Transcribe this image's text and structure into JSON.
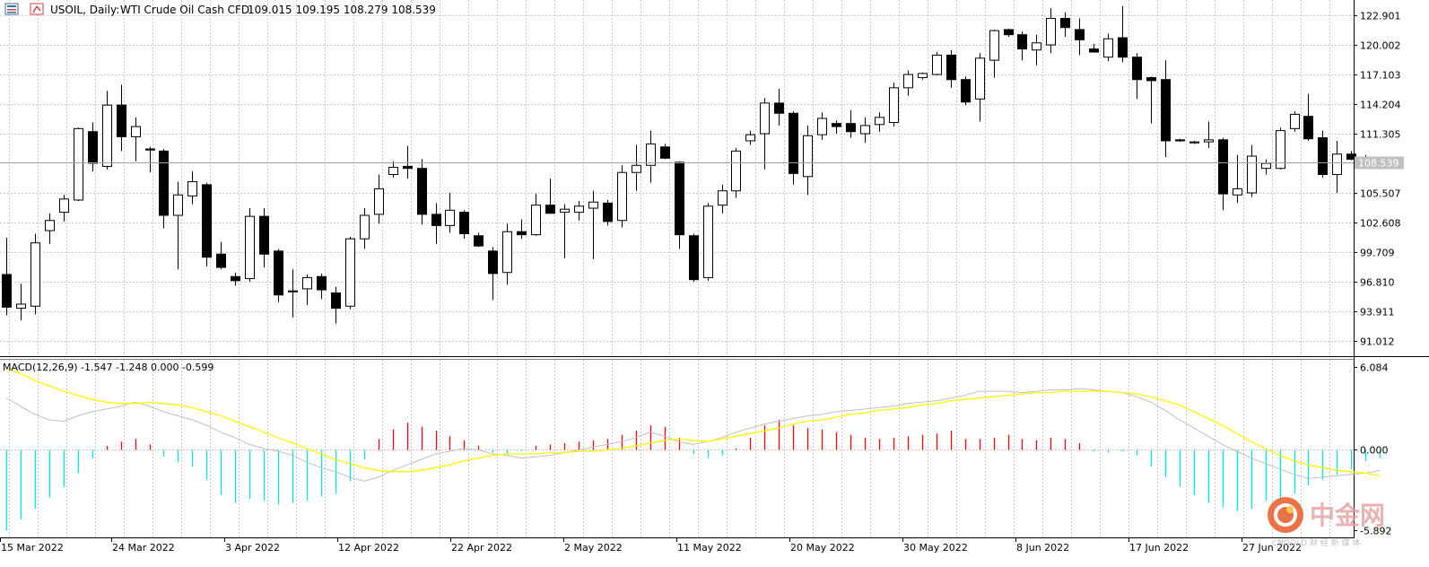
{
  "header": {
    "symbol": "USOIL, Daily:",
    "description": "WTI Crude Oil Cash CFD",
    "ohlc": "109.015 109.195 108.279 108.539"
  },
  "price_axis": {
    "ticks": [
      "122.901",
      "120.002",
      "117.103",
      "114.204",
      "111.305",
      "108.539",
      "105.507",
      "102.608",
      "99.709",
      "96.810",
      "93.911",
      "91.012"
    ],
    "current_label": "108.539"
  },
  "macd_panel": {
    "label": "MACD(12,26,9) -1.547 -1.248 0.000 -0.599",
    "ticks": [
      "6.084",
      "0.000",
      "-5.892"
    ]
  },
  "date_axis": {
    "labels": [
      "15 Mar 2022",
      "24 Mar 2022",
      "3 Apr 2022",
      "12 Apr 2022",
      "22 Apr 2022",
      "2 May 2022",
      "11 May 2022",
      "20 May 2022",
      "30 May 2022",
      "8 Jun 2022",
      "17 Jun 2022",
      "27 Jun 2022"
    ]
  },
  "watermark": {
    "brand": "中金网",
    "sub": "CNGOLD 财 经 新 媒 体"
  },
  "colors": {
    "bull_fill": "#ffffff",
    "bear_fill": "#000000",
    "grid": "#c8c8c8",
    "hist_positive": "#ff0000",
    "hist_negative": "#00e5ee",
    "signal_line": "#ffff00",
    "macd_line": "#c0c0c0"
  },
  "chart_data": [
    {
      "type": "candlestick",
      "title": "USOIL, Daily: WTI Crude Oil Cash CFD",
      "ylim": [
        89.5,
        124.4
      ],
      "x_labels": [
        "15 Mar 2022",
        "24 Mar 2022",
        "3 Apr 2022",
        "12 Apr 2022",
        "22 Apr 2022",
        "2 May 2022",
        "11 May 2022",
        "20 May 2022",
        "30 May 2022",
        "8 Jun 2022",
        "17 Jun 2022",
        "27 Jun 2022"
      ],
      "candles": [
        {
          "o": 97.5,
          "h": 101.1,
          "l": 93.5,
          "c": 94.3
        },
        {
          "o": 94.2,
          "h": 96.6,
          "l": 93.0,
          "c": 94.6
        },
        {
          "o": 94.4,
          "h": 101.5,
          "l": 93.6,
          "c": 100.6
        },
        {
          "o": 101.8,
          "h": 103.5,
          "l": 100.5,
          "c": 102.8
        },
        {
          "o": 103.6,
          "h": 105.3,
          "l": 102.7,
          "c": 104.9
        },
        {
          "o": 104.8,
          "h": 111.9,
          "l": 104.7,
          "c": 111.8
        },
        {
          "o": 111.5,
          "h": 112.4,
          "l": 107.6,
          "c": 108.4
        },
        {
          "o": 108.1,
          "h": 115.5,
          "l": 107.8,
          "c": 114.1
        },
        {
          "o": 114.1,
          "h": 116.1,
          "l": 109.6,
          "c": 111.0
        },
        {
          "o": 111.0,
          "h": 112.9,
          "l": 108.6,
          "c": 112.0
        },
        {
          "o": 109.8,
          "h": 110.0,
          "l": 107.5,
          "c": 109.7
        },
        {
          "o": 109.6,
          "h": 109.8,
          "l": 102.0,
          "c": 103.3
        },
        {
          "o": 103.3,
          "h": 106.6,
          "l": 98.0,
          "c": 105.3
        },
        {
          "o": 105.2,
          "h": 107.6,
          "l": 104.4,
          "c": 106.6
        },
        {
          "o": 106.3,
          "h": 106.5,
          "l": 98.3,
          "c": 99.2
        },
        {
          "o": 99.5,
          "h": 100.7,
          "l": 98.0,
          "c": 98.2
        },
        {
          "o": 97.3,
          "h": 97.7,
          "l": 96.4,
          "c": 96.9
        },
        {
          "o": 97.1,
          "h": 104.0,
          "l": 96.8,
          "c": 103.2
        },
        {
          "o": 103.2,
          "h": 104.0,
          "l": 98.2,
          "c": 99.5
        },
        {
          "o": 99.8,
          "h": 100.0,
          "l": 94.8,
          "c": 95.5
        },
        {
          "o": 95.8,
          "h": 98.0,
          "l": 93.3,
          "c": 95.9
        },
        {
          "o": 96.1,
          "h": 97.5,
          "l": 94.5,
          "c": 97.2
        },
        {
          "o": 97.3,
          "h": 97.6,
          "l": 95.1,
          "c": 96.0
        },
        {
          "o": 95.7,
          "h": 96.3,
          "l": 92.7,
          "c": 94.2
        },
        {
          "o": 94.4,
          "h": 101.2,
          "l": 94.1,
          "c": 101.0
        },
        {
          "o": 101.0,
          "h": 104.0,
          "l": 100.0,
          "c": 103.3
        },
        {
          "o": 103.4,
          "h": 107.3,
          "l": 102.5,
          "c": 105.9
        },
        {
          "o": 107.3,
          "h": 108.6,
          "l": 107.0,
          "c": 108.0
        },
        {
          "o": 108.1,
          "h": 110.1,
          "l": 106.9,
          "c": 107.9
        },
        {
          "o": 107.9,
          "h": 108.8,
          "l": 102.4,
          "c": 103.4
        },
        {
          "o": 103.4,
          "h": 104.5,
          "l": 100.5,
          "c": 102.3
        },
        {
          "o": 102.3,
          "h": 105.5,
          "l": 101.6,
          "c": 103.8
        },
        {
          "o": 103.6,
          "h": 103.8,
          "l": 101.0,
          "c": 101.5
        },
        {
          "o": 101.3,
          "h": 101.6,
          "l": 100.2,
          "c": 100.3
        },
        {
          "o": 99.8,
          "h": 100.2,
          "l": 95.0,
          "c": 97.6
        },
        {
          "o": 97.7,
          "h": 102.5,
          "l": 96.5,
          "c": 101.7
        },
        {
          "o": 101.7,
          "h": 102.9,
          "l": 101.0,
          "c": 101.4
        },
        {
          "o": 101.4,
          "h": 105.4,
          "l": 101.3,
          "c": 104.3
        },
        {
          "o": 104.3,
          "h": 106.9,
          "l": 103.7,
          "c": 103.5
        },
        {
          "o": 103.6,
          "h": 104.4,
          "l": 99.1,
          "c": 103.9
        },
        {
          "o": 103.6,
          "h": 104.7,
          "l": 102.8,
          "c": 104.2
        },
        {
          "o": 104.0,
          "h": 105.7,
          "l": 99.0,
          "c": 104.6
        },
        {
          "o": 104.5,
          "h": 104.8,
          "l": 102.3,
          "c": 102.7
        },
        {
          "o": 102.8,
          "h": 108.2,
          "l": 102.1,
          "c": 107.5
        },
        {
          "o": 107.5,
          "h": 110.2,
          "l": 105.7,
          "c": 108.2
        },
        {
          "o": 108.2,
          "h": 111.6,
          "l": 106.5,
          "c": 110.3
        },
        {
          "o": 110.0,
          "h": 110.3,
          "l": 108.8,
          "c": 108.9
        },
        {
          "o": 108.5,
          "h": 108.6,
          "l": 100.0,
          "c": 101.4
        },
        {
          "o": 101.3,
          "h": 101.5,
          "l": 96.8,
          "c": 97.0
        },
        {
          "o": 97.2,
          "h": 104.5,
          "l": 96.9,
          "c": 104.2
        },
        {
          "o": 104.3,
          "h": 106.3,
          "l": 103.5,
          "c": 105.7
        },
        {
          "o": 105.7,
          "h": 109.9,
          "l": 105.0,
          "c": 109.6
        },
        {
          "o": 110.6,
          "h": 111.6,
          "l": 110.2,
          "c": 111.2
        },
        {
          "o": 111.3,
          "h": 114.8,
          "l": 107.8,
          "c": 114.3
        },
        {
          "o": 114.3,
          "h": 115.7,
          "l": 112.1,
          "c": 113.3
        },
        {
          "o": 113.3,
          "h": 113.5,
          "l": 106.3,
          "c": 107.4
        },
        {
          "o": 107.1,
          "h": 112.1,
          "l": 105.3,
          "c": 111.1
        },
        {
          "o": 111.2,
          "h": 113.4,
          "l": 110.7,
          "c": 112.8
        },
        {
          "o": 112.3,
          "h": 112.6,
          "l": 111.3,
          "c": 112.0
        },
        {
          "o": 112.3,
          "h": 113.6,
          "l": 110.9,
          "c": 111.5
        },
        {
          "o": 111.3,
          "h": 112.9,
          "l": 110.4,
          "c": 112.1
        },
        {
          "o": 112.2,
          "h": 113.4,
          "l": 111.5,
          "c": 112.9
        },
        {
          "o": 112.4,
          "h": 116.3,
          "l": 112.0,
          "c": 115.8
        },
        {
          "o": 115.8,
          "h": 117.5,
          "l": 115.0,
          "c": 117.1
        },
        {
          "o": 116.8,
          "h": 117.3,
          "l": 116.6,
          "c": 117.2
        },
        {
          "o": 117.1,
          "h": 119.3,
          "l": 117.0,
          "c": 119.0
        },
        {
          "o": 119.0,
          "h": 119.5,
          "l": 115.8,
          "c": 116.6
        },
        {
          "o": 116.6,
          "h": 116.9,
          "l": 114.1,
          "c": 114.4
        },
        {
          "o": 114.7,
          "h": 119.2,
          "l": 112.5,
          "c": 118.7
        },
        {
          "o": 118.5,
          "h": 121.5,
          "l": 116.8,
          "c": 121.4
        },
        {
          "o": 121.5,
          "h": 121.6,
          "l": 120.8,
          "c": 121.0
        },
        {
          "o": 121.0,
          "h": 121.3,
          "l": 118.5,
          "c": 119.6
        },
        {
          "o": 119.5,
          "h": 121.0,
          "l": 118.0,
          "c": 120.2
        },
        {
          "o": 120.0,
          "h": 123.6,
          "l": 119.2,
          "c": 122.6
        },
        {
          "o": 122.6,
          "h": 123.2,
          "l": 120.8,
          "c": 121.7
        },
        {
          "o": 121.5,
          "h": 122.6,
          "l": 119.0,
          "c": 120.5
        },
        {
          "o": 119.6,
          "h": 120.1,
          "l": 119.3,
          "c": 119.3
        },
        {
          "o": 118.8,
          "h": 121.1,
          "l": 118.4,
          "c": 120.6
        },
        {
          "o": 120.7,
          "h": 123.8,
          "l": 118.3,
          "c": 118.8
        },
        {
          "o": 118.8,
          "h": 119.2,
          "l": 114.7,
          "c": 116.6
        },
        {
          "o": 116.8,
          "h": 116.9,
          "l": 112.3,
          "c": 116.5
        },
        {
          "o": 116.6,
          "h": 118.5,
          "l": 109.0,
          "c": 110.6
        },
        {
          "o": 110.7,
          "h": 110.8,
          "l": 110.5,
          "c": 110.6
        },
        {
          "o": 110.4,
          "h": 110.6,
          "l": 110.3,
          "c": 110.5
        },
        {
          "o": 110.5,
          "h": 112.5,
          "l": 109.9,
          "c": 110.7
        },
        {
          "o": 110.7,
          "h": 110.9,
          "l": 103.8,
          "c": 105.4
        },
        {
          "o": 105.3,
          "h": 109.2,
          "l": 104.5,
          "c": 105.9
        },
        {
          "o": 105.5,
          "h": 110.2,
          "l": 105.1,
          "c": 109.1
        },
        {
          "o": 107.9,
          "h": 108.8,
          "l": 107.3,
          "c": 108.4
        },
        {
          "o": 107.9,
          "h": 111.9,
          "l": 107.8,
          "c": 111.6
        },
        {
          "o": 111.8,
          "h": 113.5,
          "l": 111.5,
          "c": 113.2
        },
        {
          "o": 113.0,
          "h": 115.2,
          "l": 110.6,
          "c": 110.8
        },
        {
          "o": 110.9,
          "h": 111.6,
          "l": 107.0,
          "c": 107.3
        },
        {
          "o": 107.3,
          "h": 110.6,
          "l": 105.5,
          "c": 109.3
        },
        {
          "o": 109.3,
          "h": 109.6,
          "l": 108.7,
          "c": 108.8
        },
        {
          "o": 109.0,
          "h": 109.2,
          "l": 108.3,
          "c": 108.5
        }
      ]
    },
    {
      "type": "bar",
      "title": "MACD(12,26,9) -1.547 -1.248 0.000 -0.599",
      "ylim": [
        -5.892,
        6.084
      ],
      "histogram": [
        -5.9,
        -5.1,
        -4.3,
        -3.5,
        -2.7,
        -1.7,
        -0.6,
        0.3,
        0.6,
        0.8,
        0.4,
        -0.5,
        -0.9,
        -1.2,
        -2.2,
        -3.3,
        -3.9,
        -3.6,
        -3.7,
        -4.0,
        -3.9,
        -3.7,
        -3.4,
        -3.2,
        -2.3,
        -0.7,
        0.8,
        1.5,
        2.0,
        1.7,
        1.4,
        1.0,
        0.7,
        0.3,
        -0.2,
        -0.3,
        -0.1,
        0.3,
        0.4,
        0.5,
        0.6,
        0.7,
        0.8,
        1.1,
        1.4,
        1.8,
        1.7,
        0.9,
        -0.3,
        -0.6,
        -0.4,
        0.1,
        0.9,
        1.8,
        2.2,
        1.8,
        1.6,
        1.5,
        1.3,
        1.1,
        0.9,
        0.8,
        0.9,
        1.0,
        1.1,
        1.2,
        1.4,
        0.8,
        0.8,
        0.9,
        1.1,
        0.8,
        0.7,
        0.9,
        0.8,
        0.5,
        -0.1,
        -0.2,
        -0.1,
        -0.4,
        -1.2,
        -2.0,
        -2.7,
        -3.3,
        -3.9,
        -4.2,
        -4.5,
        -4.3,
        -3.7,
        -3.6,
        -3.2,
        -2.6,
        -2.2,
        -1.8,
        -1.4,
        -0.8,
        -0.6
      ],
      "series": [
        {
          "name": "MACD",
          "values": [
            3.8,
            3.2,
            2.6,
            2.2,
            2.1,
            2.5,
            2.8,
            3.0,
            3.2,
            3.5,
            3.2,
            2.8,
            2.5,
            2.2,
            1.8,
            1.3,
            0.9,
            0.4,
            0.1,
            -0.1,
            -0.4,
            -0.9,
            -1.3,
            -1.6,
            -2.0,
            -2.3,
            -2.0,
            -1.5,
            -1.1,
            -0.7,
            -0.3,
            -0.1,
            0.1,
            0.0,
            -0.3,
            -0.4,
            -0.6,
            -0.5,
            -0.4,
            -0.2,
            0.0,
            0.2,
            0.4,
            0.6,
            0.9,
            1.3,
            1.0,
            0.6,
            0.4,
            0.6,
            0.9,
            1.3,
            1.6,
            1.9,
            2.1,
            2.3,
            2.5,
            2.6,
            2.8,
            2.9,
            3.0,
            3.1,
            3.2,
            3.4,
            3.5,
            3.6,
            3.8,
            4.0,
            4.3,
            4.3,
            4.3,
            4.2,
            4.3,
            4.4,
            4.4,
            4.5,
            4.4,
            4.3,
            4.2,
            3.9,
            3.5,
            2.9,
            2.2,
            1.6,
            1.0,
            0.4,
            -0.1,
            -0.6,
            -1.0,
            -1.4,
            -1.8,
            -2.1,
            -2.0,
            -1.9,
            -1.8,
            -1.7,
            -1.5
          ]
        },
        {
          "name": "Signal",
          "values": [
            6.0,
            5.6,
            5.1,
            4.7,
            4.3,
            4.0,
            3.7,
            3.5,
            3.4,
            3.4,
            3.5,
            3.4,
            3.3,
            3.1,
            2.8,
            2.5,
            2.1,
            1.7,
            1.3,
            0.9,
            0.5,
            0.1,
            -0.3,
            -0.7,
            -1.0,
            -1.3,
            -1.5,
            -1.6,
            -1.6,
            -1.5,
            -1.3,
            -1.1,
            -0.8,
            -0.6,
            -0.4,
            -0.3,
            -0.3,
            -0.3,
            -0.2,
            -0.2,
            -0.1,
            -0.1,
            0.0,
            0.1,
            0.3,
            0.5,
            0.7,
            0.8,
            0.7,
            0.6,
            0.8,
            1.0,
            1.2,
            1.4,
            1.6,
            1.9,
            2.1,
            2.2,
            2.4,
            2.6,
            2.7,
            2.9,
            3.0,
            3.1,
            3.3,
            3.4,
            3.6,
            3.7,
            3.8,
            3.9,
            4.0,
            4.1,
            4.2,
            4.2,
            4.3,
            4.3,
            4.3,
            4.3,
            4.2,
            4.1,
            3.9,
            3.6,
            3.3,
            2.8,
            2.3,
            1.8,
            1.2,
            0.6,
            0.1,
            -0.4,
            -0.8,
            -1.1,
            -1.3,
            -1.5,
            -1.6,
            -1.7,
            -1.9
          ]
        }
      ]
    }
  ]
}
